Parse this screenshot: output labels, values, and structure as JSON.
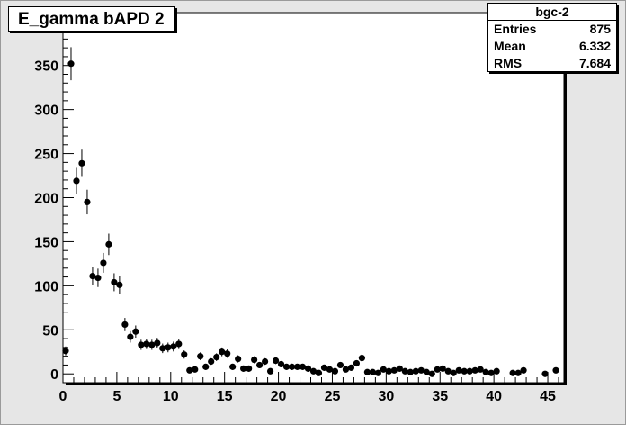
{
  "chart_data": {
    "type": "scatter",
    "title": "E_gamma bAPD 2",
    "xlabel": "",
    "ylabel": "",
    "xlim": [
      0,
      46.5
    ],
    "ylim": [
      -10,
      410
    ],
    "xticks": [
      "0",
      "5",
      "10",
      "15",
      "20",
      "25",
      "30",
      "35",
      "40",
      "45"
    ],
    "yticks": [
      "0",
      "50",
      "100",
      "150",
      "200",
      "250",
      "300",
      "350",
      "400"
    ],
    "grid": false,
    "legend": "none",
    "stats": {
      "name": "bgc-2",
      "rows": [
        {
          "label": "Entries",
          "value": "875"
        },
        {
          "label": "Mean",
          "value": "6.332"
        },
        {
          "label": "RMS",
          "value": "7.684"
        }
      ]
    },
    "points": [
      [
        0.25,
        26
      ],
      [
        0.75,
        352
      ],
      [
        1.25,
        219
      ],
      [
        1.75,
        239
      ],
      [
        2.25,
        195
      ],
      [
        2.75,
        111
      ],
      [
        3.25,
        109
      ],
      [
        3.75,
        126
      ],
      [
        4.25,
        147
      ],
      [
        4.75,
        104
      ],
      [
        5.25,
        101
      ],
      [
        5.75,
        56
      ],
      [
        6.25,
        42
      ],
      [
        6.75,
        48
      ],
      [
        7.25,
        33
      ],
      [
        7.75,
        34
      ],
      [
        8.25,
        33
      ],
      [
        8.75,
        35
      ],
      [
        9.25,
        29
      ],
      [
        9.75,
        30
      ],
      [
        10.25,
        31
      ],
      [
        10.75,
        34
      ],
      [
        11.25,
        22
      ],
      [
        11.75,
        4
      ],
      [
        12.25,
        5
      ],
      [
        12.75,
        20
      ],
      [
        13.25,
        8
      ],
      [
        13.75,
        14
      ],
      [
        14.25,
        19
      ],
      [
        14.75,
        25
      ],
      [
        15.25,
        23
      ],
      [
        15.75,
        8
      ],
      [
        16.25,
        17
      ],
      [
        16.75,
        6
      ],
      [
        17.25,
        6
      ],
      [
        17.75,
        16
      ],
      [
        18.25,
        10
      ],
      [
        18.75,
        14
      ],
      [
        19.25,
        3
      ],
      [
        19.75,
        15
      ],
      [
        20.25,
        11
      ],
      [
        20.75,
        8
      ],
      [
        21.25,
        8
      ],
      [
        21.75,
        8
      ],
      [
        22.25,
        8
      ],
      [
        22.75,
        6
      ],
      [
        23.25,
        3
      ],
      [
        23.75,
        1
      ],
      [
        24.25,
        7
      ],
      [
        24.75,
        5
      ],
      [
        25.25,
        3
      ],
      [
        25.75,
        10
      ],
      [
        26.25,
        5
      ],
      [
        26.75,
        7
      ],
      [
        27.25,
        12
      ],
      [
        27.75,
        18
      ],
      [
        28.25,
        2
      ],
      [
        28.75,
        2
      ],
      [
        29.25,
        1
      ],
      [
        29.75,
        5
      ],
      [
        30.25,
        3
      ],
      [
        30.75,
        4
      ],
      [
        31.25,
        6
      ],
      [
        31.75,
        3
      ],
      [
        32.25,
        2
      ],
      [
        32.75,
        3
      ],
      [
        33.25,
        4
      ],
      [
        33.75,
        2
      ],
      [
        34.25,
        0
      ],
      [
        34.75,
        5
      ],
      [
        35.25,
        6
      ],
      [
        35.75,
        3
      ],
      [
        36.25,
        1
      ],
      [
        36.75,
        4
      ],
      [
        37.25,
        3
      ],
      [
        37.75,
        3
      ],
      [
        38.25,
        4
      ],
      [
        38.75,
        5
      ],
      [
        39.25,
        2
      ],
      [
        39.75,
        1
      ],
      [
        40.25,
        3
      ],
      [
        41.75,
        1
      ],
      [
        42.25,
        1
      ],
      [
        42.75,
        4
      ],
      [
        44.75,
        0
      ],
      [
        45.75,
        4
      ]
    ]
  }
}
